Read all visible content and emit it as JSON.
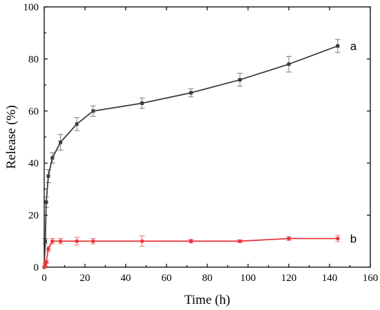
{
  "chart_data": {
    "type": "line",
    "title": "",
    "xlabel": "Time (h)",
    "ylabel": "Release (%)",
    "xlim": [
      0,
      160
    ],
    "ylim": [
      0,
      100
    ],
    "xticks": [
      0,
      20,
      40,
      60,
      80,
      100,
      120,
      140,
      160
    ],
    "yticks": [
      0,
      20,
      40,
      60,
      80,
      100
    ],
    "grid": false,
    "legend": "none",
    "series": [
      {
        "name": "a",
        "color": "#3c3c3c",
        "marker": "square",
        "x": [
          0,
          0.5,
          1,
          2,
          4,
          8,
          16,
          24,
          48,
          72,
          96,
          120,
          144
        ],
        "y": [
          0,
          10,
          25,
          35,
          42,
          48,
          55,
          60,
          63,
          67,
          72,
          78,
          85
        ],
        "err": [
          0,
          1,
          2,
          2.5,
          2,
          3,
          2.5,
          2,
          2,
          1.5,
          2.5,
          3,
          2.5
        ]
      },
      {
        "name": "b",
        "color": "#e8383d",
        "marker": "circle",
        "x": [
          0,
          0.5,
          1,
          2,
          4,
          8,
          16,
          24,
          48,
          72,
          96,
          120,
          144
        ],
        "y": [
          0,
          1,
          2,
          7,
          10,
          10,
          10,
          10,
          10,
          10,
          10,
          11,
          11
        ],
        "err": [
          0,
          0.5,
          0.5,
          1,
          1,
          1,
          1.5,
          1,
          2,
          0.7,
          0.5,
          0.7,
          1.2
        ]
      }
    ]
  }
}
